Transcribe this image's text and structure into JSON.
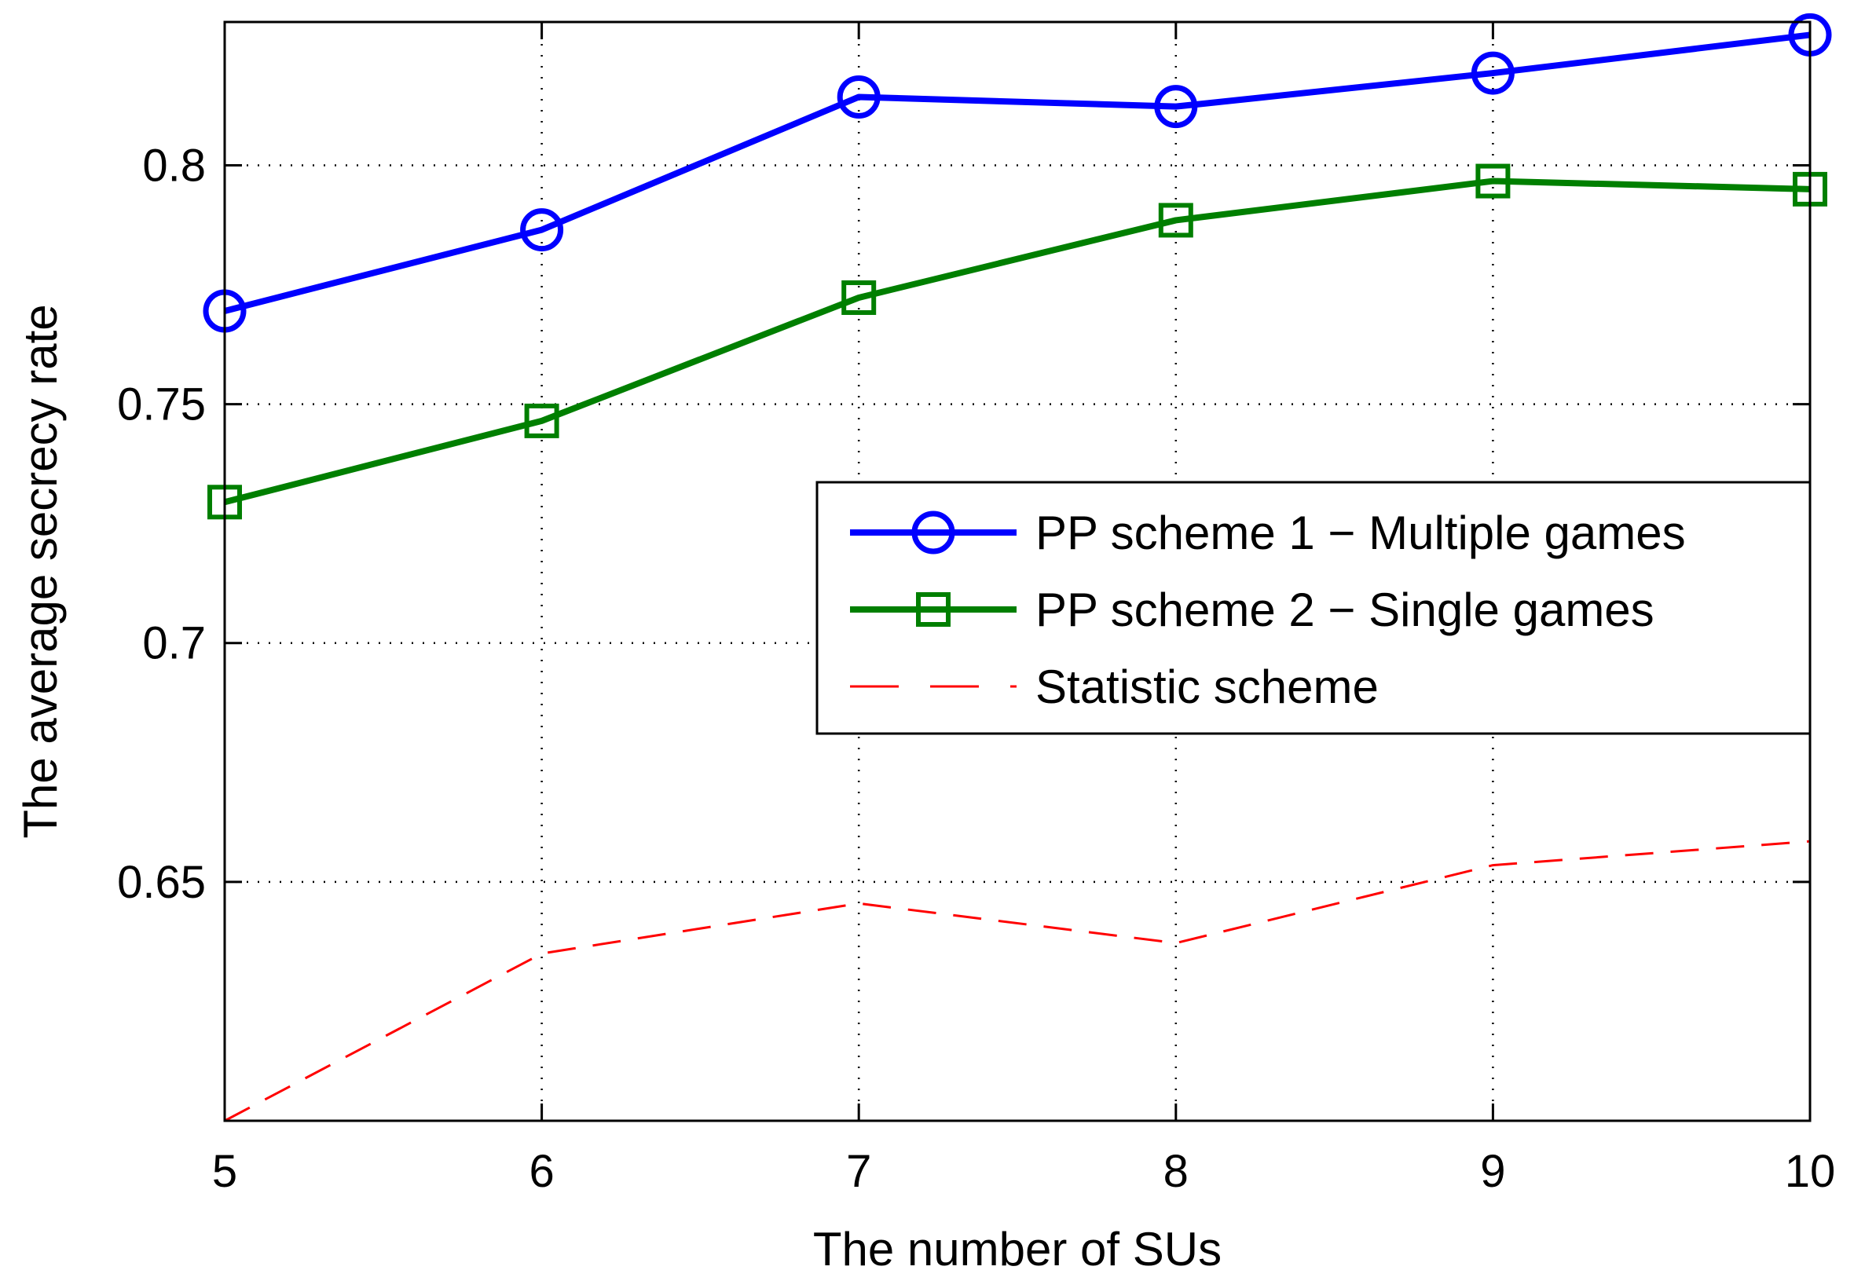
{
  "chart_data": {
    "type": "line",
    "title": "",
    "xlabel": "The number of SUs",
    "ylabel": "The average secrecy rate",
    "x": [
      5,
      6,
      7,
      8,
      9,
      10
    ],
    "xlim": [
      5,
      10
    ],
    "ylim": [
      0.6,
      0.83
    ],
    "xticks": [
      5,
      6,
      7,
      8,
      9,
      10
    ],
    "xtick_labels": [
      "5",
      "6",
      "7",
      "8",
      "9",
      "10"
    ],
    "yticks": [
      0.65,
      0.7,
      0.75,
      0.8
    ],
    "ytick_labels": [
      "0.65",
      "0.7",
      "0.75",
      "0.8"
    ],
    "grid": true,
    "legend_position": "center-right",
    "series": [
      {
        "name": "PP scheme 1 − Multiple games",
        "values": [
          0.7695,
          0.7865,
          0.8143,
          0.8123,
          0.8193,
          0.8273
        ],
        "color": "#0000ff",
        "marker": "circle",
        "linestyle": "solid"
      },
      {
        "name": "PP scheme 2 − Single games",
        "values": [
          0.7295,
          0.7465,
          0.7723,
          0.7885,
          0.7967,
          0.795
        ],
        "color": "#007f00",
        "marker": "square",
        "linestyle": "solid"
      },
      {
        "name": "Statistic scheme",
        "values": [
          0.6,
          0.635,
          0.6455,
          0.6372,
          0.6535,
          0.6585
        ],
        "color": "#ff0000",
        "marker": "none",
        "linestyle": "dashed"
      }
    ]
  }
}
